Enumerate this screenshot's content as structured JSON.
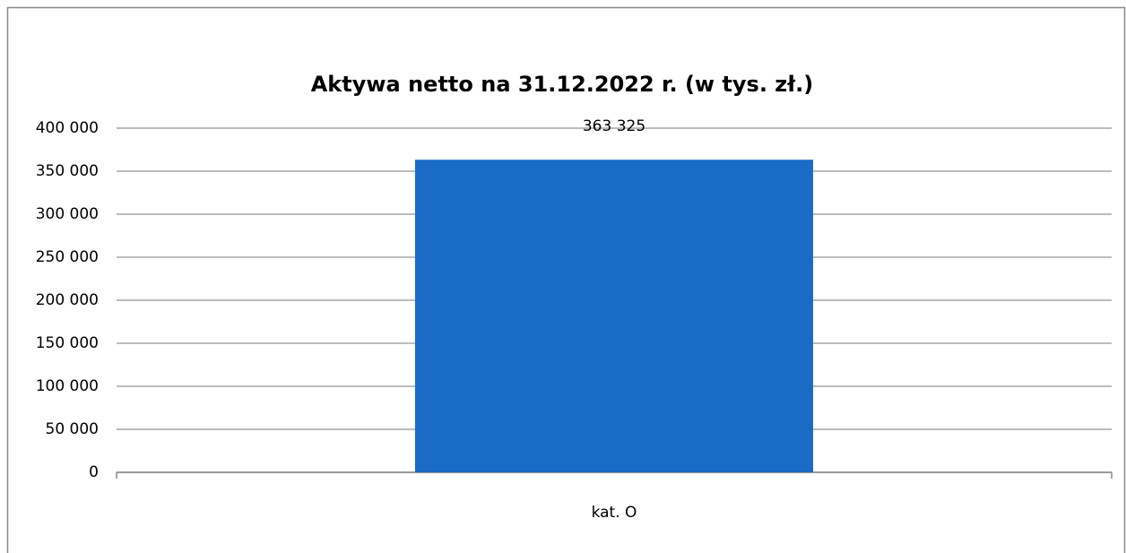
{
  "chart_data": {
    "type": "bar",
    "title": "Aktywa netto na 31.12.2022 r. (w tys. zł.)",
    "categories": [
      "kat. O"
    ],
    "values": [
      363325
    ],
    "value_labels": [
      "363 325"
    ],
    "color": "#1a6bc6",
    "ylim": [
      0,
      400000
    ],
    "yticks": [
      0,
      {
        "value": 50000,
        "label": "50 000"
      },
      {
        "value": 100000,
        "label": "100 000"
      },
      {
        "value": 150000,
        "label": "150 000"
      },
      {
        "value": 200000,
        "label": "200 000"
      },
      {
        "value": 250000,
        "label": "250 000"
      },
      {
        "value": 300000,
        "label": "300 000"
      },
      {
        "value": 350000,
        "label": "350 000"
      },
      {
        "value": 400000,
        "label": "400 000"
      }
    ],
    "grid": true
  }
}
